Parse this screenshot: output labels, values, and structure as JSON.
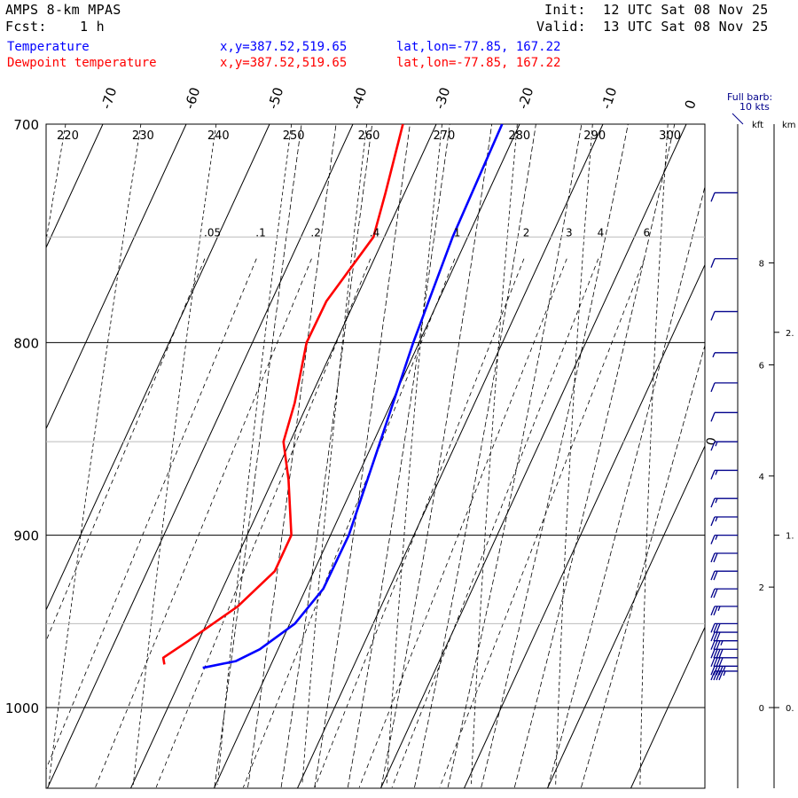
{
  "header": {
    "model": "AMPS 8-km MPAS",
    "fcst_label": "Fcst:",
    "fcst_value": "1 h",
    "init_label": "Init:",
    "init_value": "12 UTC Sat 08 Nov 25",
    "valid_label": "Valid:",
    "valid_value": "13 UTC Sat 08 Nov 25"
  },
  "legend": [
    {
      "name": "Temperature",
      "color": "#0000ff",
      "xy": "x,y=387.52,519.65",
      "latlon": "lat,lon=-77.85, 167.22"
    },
    {
      "name": "Dewpoint temperature",
      "color": "#ff0000",
      "xy": "x,y=387.52,519.65",
      "latlon": "lat,lon=-77.85, 167.22"
    }
  ],
  "barb_key": {
    "line1": "Full barb:",
    "line2": "10 kts"
  },
  "height_axis": {
    "kft_label": "kft",
    "km_label": "km",
    "kft_ticks": [
      "8",
      "6",
      "4",
      "2",
      "0"
    ],
    "km_ticks": [
      "2.",
      "1.",
      "0."
    ]
  },
  "chart_data": {
    "type": "skew-t",
    "pressure_ticks": [
      700,
      800,
      900,
      1000
    ],
    "pressure_range_hPa": [
      700,
      1050
    ],
    "isotherm_labels_C": [
      -70,
      -60,
      -50,
      -40,
      -30,
      -20,
      -10,
      0
    ],
    "theta_labels_K": [
      220,
      230,
      240,
      250,
      260,
      270,
      280,
      290,
      300
    ],
    "mixing_ratio_labels": [
      ".05",
      ".1",
      ".2",
      ".4",
      "1",
      "2",
      "3",
      "4",
      "6"
    ],
    "secondary_lines_hPa": [
      750,
      850,
      950
    ],
    "freezing_label": "0",
    "series": [
      {
        "name": "Temperature",
        "color": "#0000ff",
        "points": [
          [
            700,
            -22.1
          ],
          [
            750,
            -21.8
          ],
          [
            800,
            -20.7
          ],
          [
            850,
            -19.2
          ],
          [
            900,
            -17.8
          ],
          [
            930,
            -17.9
          ],
          [
            950,
            -19.4
          ],
          [
            965,
            -22.2
          ],
          [
            972,
            -24.4
          ],
          [
            976,
            -28.0
          ]
        ]
      },
      {
        "name": "Dewpoint temperature",
        "color": "#ff0000",
        "points": [
          [
            700,
            -34.0
          ],
          [
            730,
            -32.3
          ],
          [
            750,
            -31.3
          ],
          [
            780,
            -33.4
          ],
          [
            800,
            -33.5
          ],
          [
            830,
            -31.6
          ],
          [
            850,
            -30.8
          ],
          [
            870,
            -28.1
          ],
          [
            900,
            -24.7
          ],
          [
            920,
            -24.7
          ],
          [
            940,
            -27.2
          ],
          [
            960,
            -31.2
          ],
          [
            970,
            -33.3
          ],
          [
            974,
            -32.8
          ]
        ]
      }
    ],
    "wind_barbs_hPa": [
      730,
      760,
      785,
      805,
      820,
      835,
      850,
      865,
      880,
      890,
      900,
      910,
      920,
      930,
      940,
      950,
      955,
      960,
      965,
      970,
      975,
      978
    ],
    "wind_speeds_kts": [
      10,
      10,
      10,
      5,
      10,
      10,
      15,
      15,
      15,
      15,
      15,
      20,
      20,
      20,
      25,
      30,
      30,
      35,
      40,
      40,
      45,
      45
    ],
    "height_ticks_kft_hPa": [
      [
        8,
        762
      ],
      [
        6,
        811
      ],
      [
        4,
        868
      ],
      [
        2,
        929
      ],
      [
        0,
        1000
      ]
    ],
    "height_ticks_km_hPa": [
      [
        2,
        795
      ],
      [
        1,
        900
      ],
      [
        0,
        1000
      ]
    ]
  }
}
